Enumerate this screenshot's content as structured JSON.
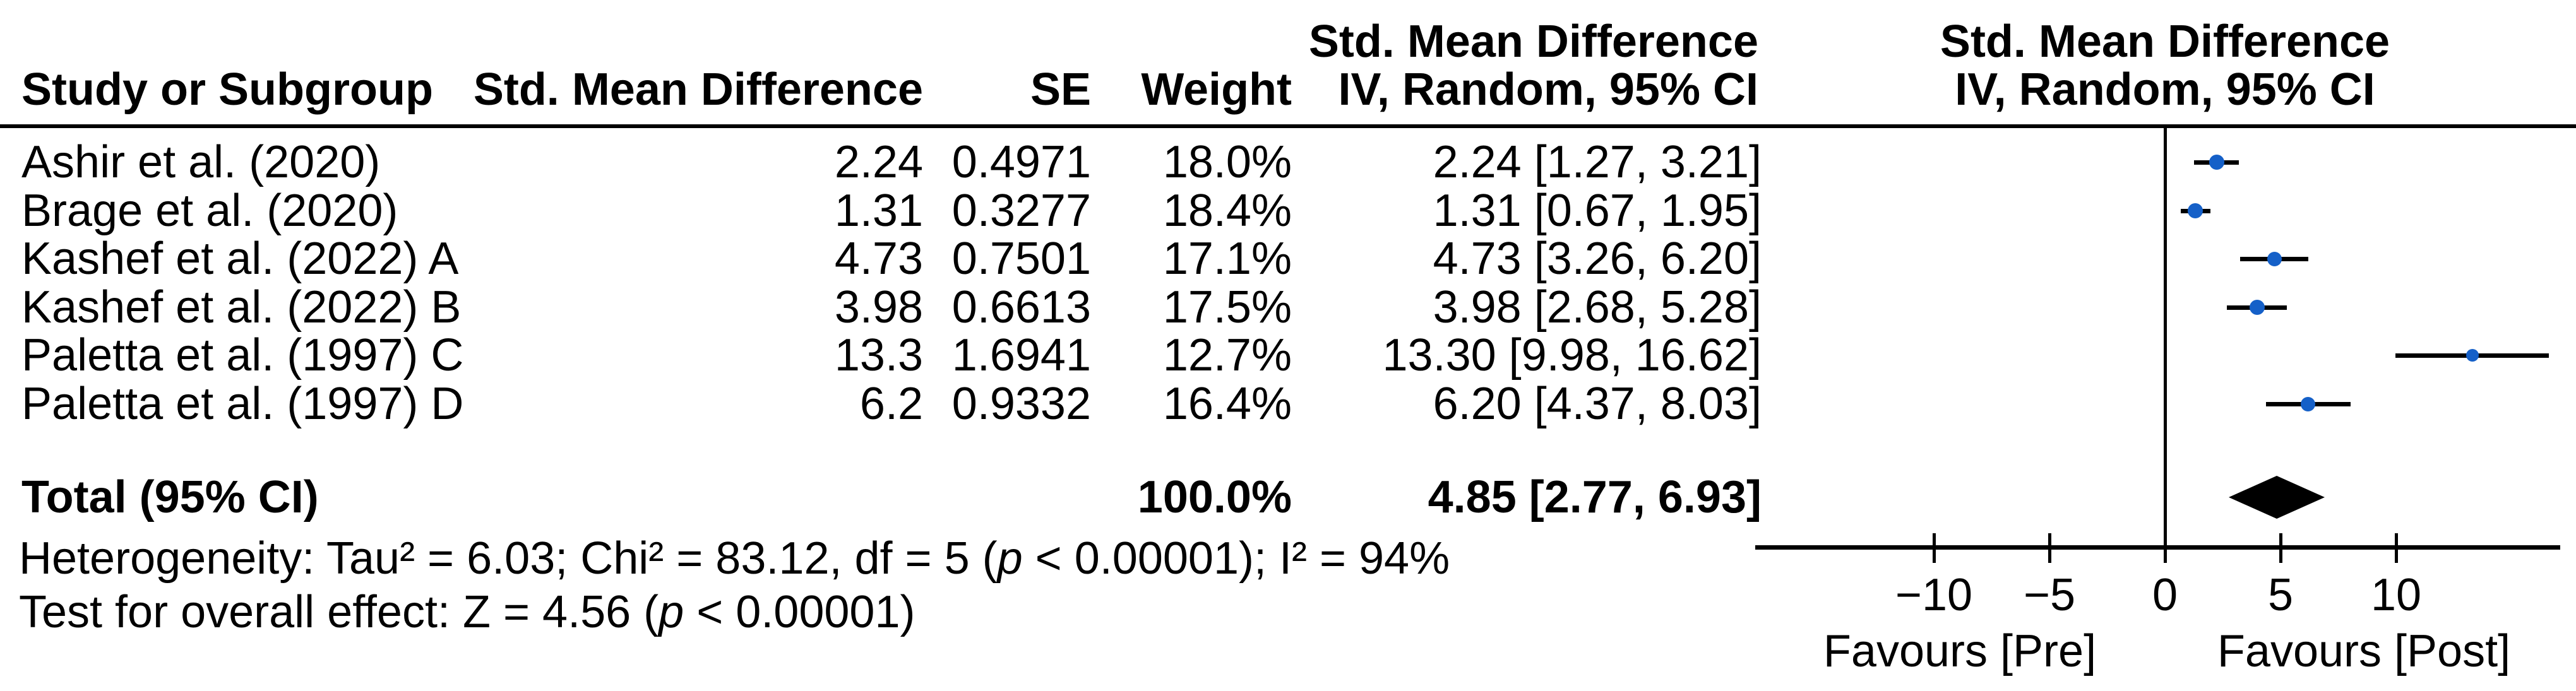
{
  "header": {
    "study": "Study or Subgroup",
    "smd": "Std. Mean Difference",
    "se": "SE",
    "weight": "Weight",
    "ci_line1": "Std. Mean Difference",
    "ci_line2": "IV, Random, 95% CI",
    "plot_line1": "Std. Mean Difference",
    "plot_line2": "IV, Random, 95% CI"
  },
  "footer": {
    "het_pre": "Heterogeneity: Tau² = 6.03; Chi² = 83.12, df = 5 (",
    "het_p": "p",
    "het_post": " < 0.00001); I² = 94%",
    "test_pre": "Test for overall effect: Z = 4.56 (",
    "test_p": "p",
    "test_post": " < 0.00001)"
  },
  "chart_data": {
    "type": "scatter",
    "subtype": "forest-plot",
    "title": "",
    "effect_measure": "Std. Mean Difference, IV, Random, 95% CI",
    "xlim": [
      -17.7,
      17.1
    ],
    "grid": false,
    "marker_color": "#1560C8",
    "ticks": [
      {
        "value": -10,
        "label": "−10"
      },
      {
        "value": -5,
        "label": "−5"
      },
      {
        "value": 0,
        "label": "0"
      },
      {
        "value": 5,
        "label": "5"
      },
      {
        "value": 10,
        "label": "10"
      }
    ],
    "favours_pre": "Favours [Pre]",
    "favours_post": "Favours [Post]",
    "studies": [
      {
        "name": "Ashir et al. (2020)",
        "smd_text": "2.24",
        "se_text": "0.4971",
        "weight_text": "18.0%",
        "ci_text": "2.24 [1.27, 3.21]",
        "smd": 2.24,
        "lo": 1.27,
        "hi": 3.21,
        "weight": 18.0
      },
      {
        "name": "Brage et al. (2020)",
        "smd_text": "1.31",
        "se_text": "0.3277",
        "weight_text": "18.4%",
        "ci_text": "1.31 [0.67, 1.95]",
        "smd": 1.31,
        "lo": 0.67,
        "hi": 1.95,
        "weight": 18.4
      },
      {
        "name": "Kashef et al. (2022) A",
        "smd_text": "4.73",
        "se_text": "0.7501",
        "weight_text": "17.1%",
        "ci_text": "4.73 [3.26, 6.20]",
        "smd": 4.73,
        "lo": 3.26,
        "hi": 6.2,
        "weight": 17.1
      },
      {
        "name": "Kashef et al. (2022) B",
        "smd_text": "3.98",
        "se_text": "0.6613",
        "weight_text": "17.5%",
        "ci_text": "3.98 [2.68, 5.28]",
        "smd": 3.98,
        "lo": 2.68,
        "hi": 5.28,
        "weight": 17.5
      },
      {
        "name": "Paletta et al. (1997) C",
        "smd_text": "13.3",
        "se_text": "1.6941",
        "weight_text": "12.7%",
        "ci_text": "13.30 [9.98, 16.62]",
        "smd": 13.3,
        "lo": 9.98,
        "hi": 16.62,
        "weight": 12.7
      },
      {
        "name": "Paletta et al. (1997) D",
        "smd_text": "6.2",
        "se_text": "0.9332",
        "weight_text": "16.4%",
        "ci_text": "6.20 [4.37, 8.03]",
        "smd": 6.2,
        "lo": 4.37,
        "hi": 8.03,
        "weight": 16.4
      }
    ],
    "total": {
      "label": "Total (95% CI)",
      "weight_text": "100.0%",
      "ci_text": "4.85 [2.77, 6.93]",
      "smd": 4.85,
      "lo": 2.77,
      "hi": 6.93
    }
  }
}
